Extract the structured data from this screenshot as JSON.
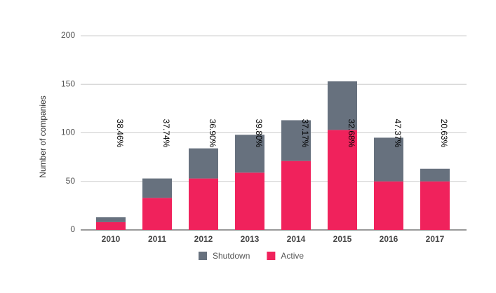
{
  "chart_data": {
    "type": "stacked_bar",
    "y_label": "Number of companies",
    "categories": [
      "2010",
      "2011",
      "2012",
      "2013",
      "2014",
      "2015",
      "2016",
      "2017"
    ],
    "series": [
      {
        "name": "Active",
        "color": "#f0225c",
        "values": [
          8,
          33,
          53,
          59,
          71,
          103,
          50,
          50
        ]
      },
      {
        "name": "Shutdown",
        "color": "#67717e",
        "values": [
          5,
          20,
          31,
          39,
          42,
          50,
          45,
          13
        ]
      }
    ],
    "annotations": [
      "38.46%",
      "37.74%",
      "36.90%",
      "39.80%",
      "37.17%",
      "32.68%",
      "47.37%",
      "20.63%"
    ],
    "legend_order": [
      "Shutdown",
      "Active"
    ],
    "ylim": [
      0,
      200
    ],
    "yticks": [
      0,
      50,
      100,
      150,
      200
    ],
    "grid": true,
    "legend": "bottom"
  }
}
